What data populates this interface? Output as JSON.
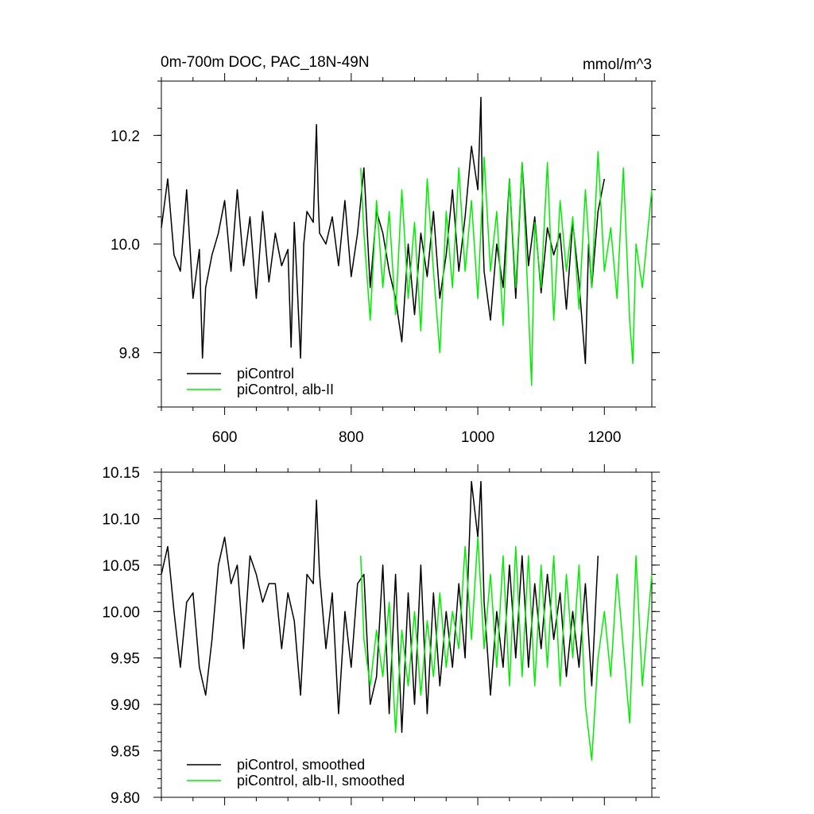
{
  "title_left": "0m-700m DOC, PAC_18N-49N",
  "title_right": "mmol/m^3",
  "colors": {
    "control": "#000000",
    "albII": "#00ee00"
  },
  "chart_data": [
    {
      "type": "line",
      "panel": "top",
      "xlim": [
        500,
        1275
      ],
      "ylim": [
        9.7,
        10.3
      ],
      "x_ticks": [
        "600",
        "800",
        "1000",
        "1200"
      ],
      "y_ticks": [
        "9.8",
        "10.0",
        "10.2"
      ],
      "legend_position": "bottom-left",
      "series": [
        {
          "name": "piControl",
          "color": "#000000",
          "x": [
            500,
            510,
            520,
            530,
            540,
            550,
            560,
            565,
            570,
            580,
            590,
            600,
            610,
            620,
            630,
            640,
            650,
            660,
            670,
            680,
            690,
            700,
            705,
            710,
            720,
            725,
            730,
            740,
            745,
            748,
            750,
            760,
            770,
            780,
            790,
            800,
            810,
            820,
            830,
            840,
            850,
            860,
            870,
            880,
            890,
            900,
            910,
            920,
            930,
            940,
            950,
            960,
            970,
            980,
            990,
            1000,
            1005,
            1008,
            1010,
            1020,
            1030,
            1040,
            1050,
            1060,
            1070,
            1080,
            1090,
            1100,
            1110,
            1120,
            1130,
            1140,
            1150,
            1160,
            1170,
            1175,
            1180,
            1190,
            1200
          ],
          "values": [
            10.03,
            10.12,
            9.98,
            9.95,
            10.1,
            9.9,
            9.99,
            9.79,
            9.92,
            9.98,
            10.02,
            10.08,
            9.95,
            10.1,
            9.96,
            10.05,
            9.9,
            10.06,
            9.93,
            10.02,
            9.96,
            9.99,
            9.81,
            10.04,
            9.79,
            10.0,
            10.06,
            10.04,
            10.22,
            10.08,
            10.02,
            10.0,
            10.05,
            9.96,
            10.08,
            9.94,
            10.02,
            10.14,
            9.92,
            10.06,
            10.02,
            9.95,
            9.9,
            9.82,
            10.0,
            9.87,
            10.02,
            9.94,
            10.06,
            9.9,
            9.98,
            10.1,
            9.95,
            10.05,
            10.18,
            10.1,
            10.27,
            10.02,
            9.95,
            9.86,
            10.0,
            9.92,
            10.12,
            9.9,
            10.15,
            9.96,
            10.05,
            9.91,
            10.03,
            9.98,
            10.02,
            9.88,
            10.04,
            9.93,
            9.78,
            10.0,
            9.92,
            10.06,
            10.12
          ]
        },
        {
          "name": "piControl, alb-II",
          "color": "#00ee00",
          "x": [
            815,
            820,
            830,
            840,
            850,
            860,
            870,
            880,
            890,
            900,
            910,
            920,
            930,
            940,
            950,
            960,
            970,
            980,
            990,
            1000,
            1010,
            1020,
            1030,
            1040,
            1050,
            1060,
            1070,
            1080,
            1085,
            1090,
            1100,
            1110,
            1120,
            1130,
            1140,
            1150,
            1160,
            1170,
            1180,
            1190,
            1200,
            1210,
            1220,
            1230,
            1240,
            1245,
            1250,
            1260,
            1270,
            1275
          ],
          "values": [
            10.14,
            10.02,
            9.86,
            10.08,
            9.92,
            10.06,
            9.87,
            10.1,
            9.9,
            10.04,
            9.84,
            10.12,
            9.95,
            9.8,
            10.06,
            9.92,
            10.14,
            9.95,
            10.08,
            9.9,
            10.16,
            9.95,
            10.06,
            9.85,
            10.12,
            9.92,
            10.15,
            9.88,
            9.74,
            10.04,
            9.92,
            10.15,
            9.86,
            10.08,
            9.95,
            10.05,
            9.88,
            10.1,
            9.92,
            10.17,
            9.95,
            10.03,
            9.9,
            10.14,
            9.86,
            9.78,
            10.0,
            9.92,
            10.04,
            10.1
          ]
        }
      ]
    },
    {
      "type": "line",
      "panel": "bottom",
      "xlim": [
        500,
        1275
      ],
      "ylim": [
        9.8,
        10.15
      ],
      "y_ticks": [
        "9.80",
        "9.85",
        "9.90",
        "9.95",
        "10.00",
        "10.05",
        "10.10",
        "10.15"
      ],
      "legend_position": "bottom-left",
      "series": [
        {
          "name": "piControl, smoothed",
          "color": "#000000",
          "x": [
            500,
            510,
            520,
            530,
            540,
            550,
            560,
            570,
            580,
            590,
            600,
            610,
            620,
            630,
            640,
            650,
            660,
            670,
            680,
            690,
            700,
            710,
            720,
            730,
            740,
            745,
            750,
            760,
            770,
            780,
            790,
            800,
            810,
            820,
            830,
            840,
            850,
            860,
            870,
            880,
            890,
            900,
            910,
            920,
            930,
            940,
            950,
            960,
            970,
            980,
            990,
            1000,
            1005,
            1010,
            1020,
            1030,
            1040,
            1050,
            1060,
            1070,
            1080,
            1090,
            1100,
            1110,
            1120,
            1130,
            1140,
            1150,
            1160,
            1170,
            1180,
            1190
          ],
          "values": [
            10.04,
            10.07,
            10.0,
            9.94,
            10.01,
            10.02,
            9.94,
            9.91,
            9.97,
            10.05,
            10.08,
            10.03,
            10.05,
            9.96,
            10.06,
            10.04,
            10.01,
            10.03,
            10.03,
            9.96,
            10.02,
            9.99,
            9.91,
            10.04,
            10.03,
            10.12,
            10.04,
            9.96,
            10.02,
            9.89,
            10.0,
            9.94,
            10.03,
            10.04,
            9.9,
            9.93,
            10.05,
            9.89,
            10.04,
            9.87,
            10.02,
            9.9,
            10.05,
            9.89,
            10.02,
            9.92,
            10.0,
            9.94,
            10.03,
            9.95,
            10.14,
            10.08,
            10.14,
            10.01,
            9.91,
            10.0,
            9.94,
            10.05,
            9.95,
            10.06,
            9.94,
            10.03,
            9.96,
            10.04,
            9.97,
            10.02,
            9.93,
            10.0,
            9.94,
            10.03,
            9.92,
            10.06
          ]
        },
        {
          "name": "piControl, alb-II, smoothed",
          "color": "#00ee00",
          "x": [
            815,
            820,
            830,
            840,
            850,
            860,
            870,
            880,
            890,
            900,
            910,
            920,
            930,
            940,
            950,
            960,
            970,
            980,
            990,
            1000,
            1010,
            1020,
            1030,
            1040,
            1050,
            1060,
            1070,
            1080,
            1090,
            1100,
            1110,
            1120,
            1130,
            1140,
            1150,
            1160,
            1170,
            1180,
            1190,
            1200,
            1210,
            1220,
            1230,
            1240,
            1250,
            1260,
            1270,
            1275
          ],
          "values": [
            10.06,
            9.97,
            9.92,
            9.98,
            9.93,
            10.01,
            9.87,
            9.98,
            9.92,
            10.0,
            9.91,
            9.99,
            9.93,
            10.02,
            9.94,
            10.0,
            9.96,
            10.07,
            9.97,
            10.08,
            9.96,
            10.04,
            9.94,
            10.06,
            9.92,
            10.07,
            9.93,
            10.06,
            9.92,
            10.05,
            9.94,
            10.06,
            9.92,
            10.04,
            9.95,
            10.05,
            9.9,
            9.84,
            9.95,
            10.0,
            9.93,
            10.04,
            9.96,
            9.88,
            10.06,
            9.92,
            10.0,
            10.04
          ]
        }
      ]
    }
  ]
}
